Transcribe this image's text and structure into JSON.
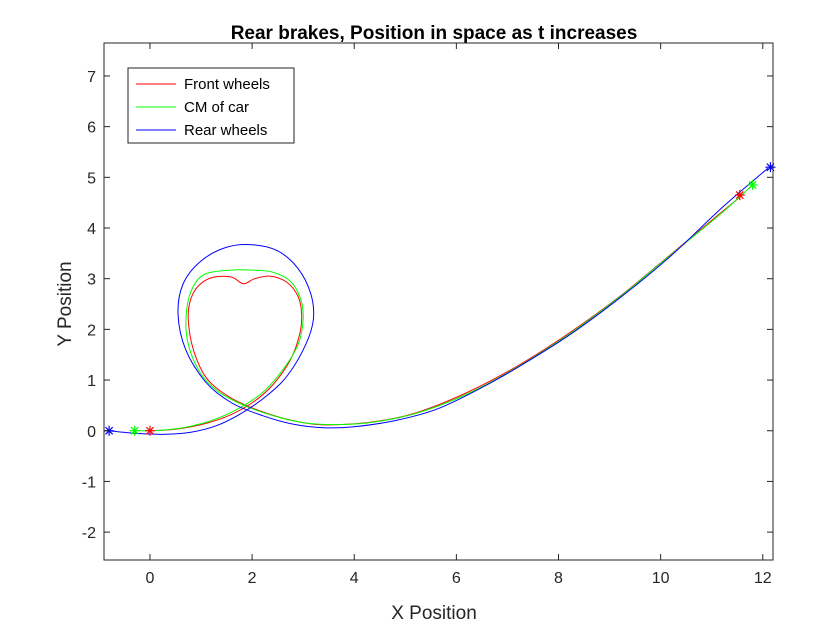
{
  "chart_data": {
    "type": "line",
    "title": "Rear brakes, Position in space as t increases",
    "xlabel": "X Position",
    "ylabel": "Y Position",
    "xlim": [
      -0.9,
      12.2
    ],
    "ylim": [
      -2.55,
      7.65
    ],
    "xticks": [
      0,
      2,
      4,
      6,
      8,
      10,
      12
    ],
    "yticks": [
      -2,
      -1,
      0,
      1,
      2,
      3,
      4,
      5,
      6,
      7
    ],
    "grid": false,
    "legend_position": "top-left",
    "series": [
      {
        "name": "Front wheels",
        "color": "#ff0000",
        "points": [
          [
            0,
            0
          ],
          [
            0.5,
            0.03
          ],
          [
            1.0,
            0.12
          ],
          [
            1.5,
            0.28
          ],
          [
            2.0,
            0.55
          ],
          [
            2.4,
            0.9
          ],
          [
            2.75,
            1.4
          ],
          [
            2.93,
            1.9
          ],
          [
            2.97,
            2.3
          ],
          [
            2.9,
            2.65
          ],
          [
            2.68,
            2.93
          ],
          [
            2.35,
            3.05
          ],
          [
            2.05,
            3.0
          ],
          [
            1.83,
            2.9
          ],
          [
            1.6,
            3.03
          ],
          [
            1.25,
            3.03
          ],
          [
            0.97,
            2.88
          ],
          [
            0.8,
            2.6
          ],
          [
            0.75,
            2.2
          ],
          [
            0.85,
            1.6
          ],
          [
            1.1,
            1.05
          ],
          [
            1.5,
            0.7
          ],
          [
            2.0,
            0.45
          ],
          [
            2.6,
            0.25
          ],
          [
            3.2,
            0.13
          ],
          [
            3.7,
            0.12
          ],
          [
            4.4,
            0.18
          ],
          [
            5.2,
            0.35
          ],
          [
            6.2,
            0.75
          ],
          [
            7.2,
            1.28
          ],
          [
            8.2,
            1.92
          ],
          [
            9.2,
            2.65
          ],
          [
            10.2,
            3.48
          ],
          [
            11.0,
            4.15
          ],
          [
            11.6,
            4.65
          ]
        ]
      },
      {
        "name": "CM of car",
        "color": "#00ff00",
        "points": [
          [
            -0.3,
            0
          ],
          [
            0.2,
            0.01
          ],
          [
            0.7,
            0.07
          ],
          [
            1.2,
            0.2
          ],
          [
            1.7,
            0.42
          ],
          [
            2.2,
            0.75
          ],
          [
            2.6,
            1.2
          ],
          [
            2.9,
            1.7
          ],
          [
            3.0,
            2.2
          ],
          [
            2.95,
            2.6
          ],
          [
            2.75,
            2.95
          ],
          [
            2.4,
            3.13
          ],
          [
            2.0,
            3.17
          ],
          [
            1.6,
            3.17
          ],
          [
            1.1,
            3.1
          ],
          [
            0.85,
            2.85
          ],
          [
            0.72,
            2.4
          ],
          [
            0.73,
            1.8
          ],
          [
            0.95,
            1.2
          ],
          [
            1.3,
            0.8
          ],
          [
            1.8,
            0.52
          ],
          [
            2.4,
            0.3
          ],
          [
            3.0,
            0.16
          ],
          [
            3.6,
            0.12
          ],
          [
            4.3,
            0.16
          ],
          [
            5.2,
            0.34
          ],
          [
            6.2,
            0.72
          ],
          [
            7.2,
            1.26
          ],
          [
            8.2,
            1.9
          ],
          [
            9.2,
            2.64
          ],
          [
            10.2,
            3.47
          ],
          [
            11.2,
            4.3
          ],
          [
            11.8,
            4.85
          ]
        ]
      },
      {
        "name": "Rear wheels",
        "color": "#0000ff",
        "points": [
          [
            -0.8,
            0
          ],
          [
            -0.3,
            -0.05
          ],
          [
            0.3,
            -0.07
          ],
          [
            0.8,
            -0.03
          ],
          [
            1.3,
            0.1
          ],
          [
            1.8,
            0.35
          ],
          [
            2.3,
            0.7
          ],
          [
            2.7,
            1.1
          ],
          [
            3.05,
            1.7
          ],
          [
            3.2,
            2.2
          ],
          [
            3.15,
            2.7
          ],
          [
            2.9,
            3.2
          ],
          [
            2.5,
            3.55
          ],
          [
            2.0,
            3.67
          ],
          [
            1.5,
            3.62
          ],
          [
            1.0,
            3.35
          ],
          [
            0.65,
            2.9
          ],
          [
            0.55,
            2.3
          ],
          [
            0.7,
            1.6
          ],
          [
            1.1,
            0.95
          ],
          [
            1.6,
            0.55
          ],
          [
            2.2,
            0.3
          ],
          [
            2.8,
            0.13
          ],
          [
            3.4,
            0.06
          ],
          [
            4.0,
            0.08
          ],
          [
            4.8,
            0.2
          ],
          [
            5.6,
            0.42
          ],
          [
            6.4,
            0.8
          ],
          [
            7.2,
            1.25
          ],
          [
            8.2,
            1.88
          ],
          [
            9.2,
            2.62
          ],
          [
            10.2,
            3.45
          ],
          [
            11.2,
            4.4
          ],
          [
            12.1,
            5.18
          ]
        ]
      }
    ],
    "markers": [
      {
        "series": "Front wheels",
        "symbol": "*",
        "color": "#ff0000",
        "points": [
          [
            0,
            0
          ],
          [
            11.55,
            4.65
          ]
        ]
      },
      {
        "series": "CM of car",
        "symbol": "*",
        "color": "#00ff00",
        "points": [
          [
            -0.3,
            0
          ],
          [
            11.8,
            4.85
          ]
        ]
      },
      {
        "series": "Rear wheels",
        "symbol": "*",
        "color": "#0000ff",
        "points": [
          [
            -0.8,
            0
          ],
          [
            12.15,
            5.2
          ]
        ]
      }
    ]
  }
}
